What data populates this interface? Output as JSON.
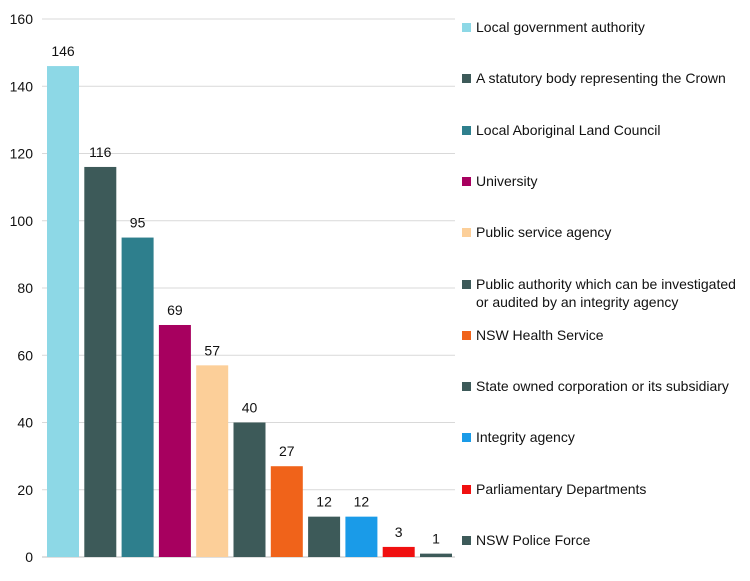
{
  "chart_data": {
    "type": "bar",
    "title": "",
    "xlabel": "",
    "ylabel": "",
    "ylim": [
      0,
      160
    ],
    "yticks": [
      0,
      20,
      40,
      60,
      80,
      100,
      120,
      140,
      160
    ],
    "grid": true,
    "legend_position": "right",
    "categories": [
      "Local government authority",
      "A statutory body representing the Crown",
      "Local Aboriginal Land Council",
      "University",
      "Public service agency",
      "Public authority which can be investigated or audited by an integrity agency",
      "NSW Health Service",
      "State owned corporation or its subsidiary",
      "Integrity agency",
      "Parliamentary Departments",
      "NSW Police Force"
    ],
    "values": [
      146,
      116,
      95,
      69,
      57,
      40,
      27,
      12,
      12,
      3,
      1
    ],
    "colors": [
      "#8dd8e6",
      "#3d5a59",
      "#2e7f8d",
      "#a7005f",
      "#fccf99",
      "#3d5a59",
      "#f0631a",
      "#3d5a59",
      "#1a9be8",
      "#f01010",
      "#3d5a59"
    ]
  }
}
